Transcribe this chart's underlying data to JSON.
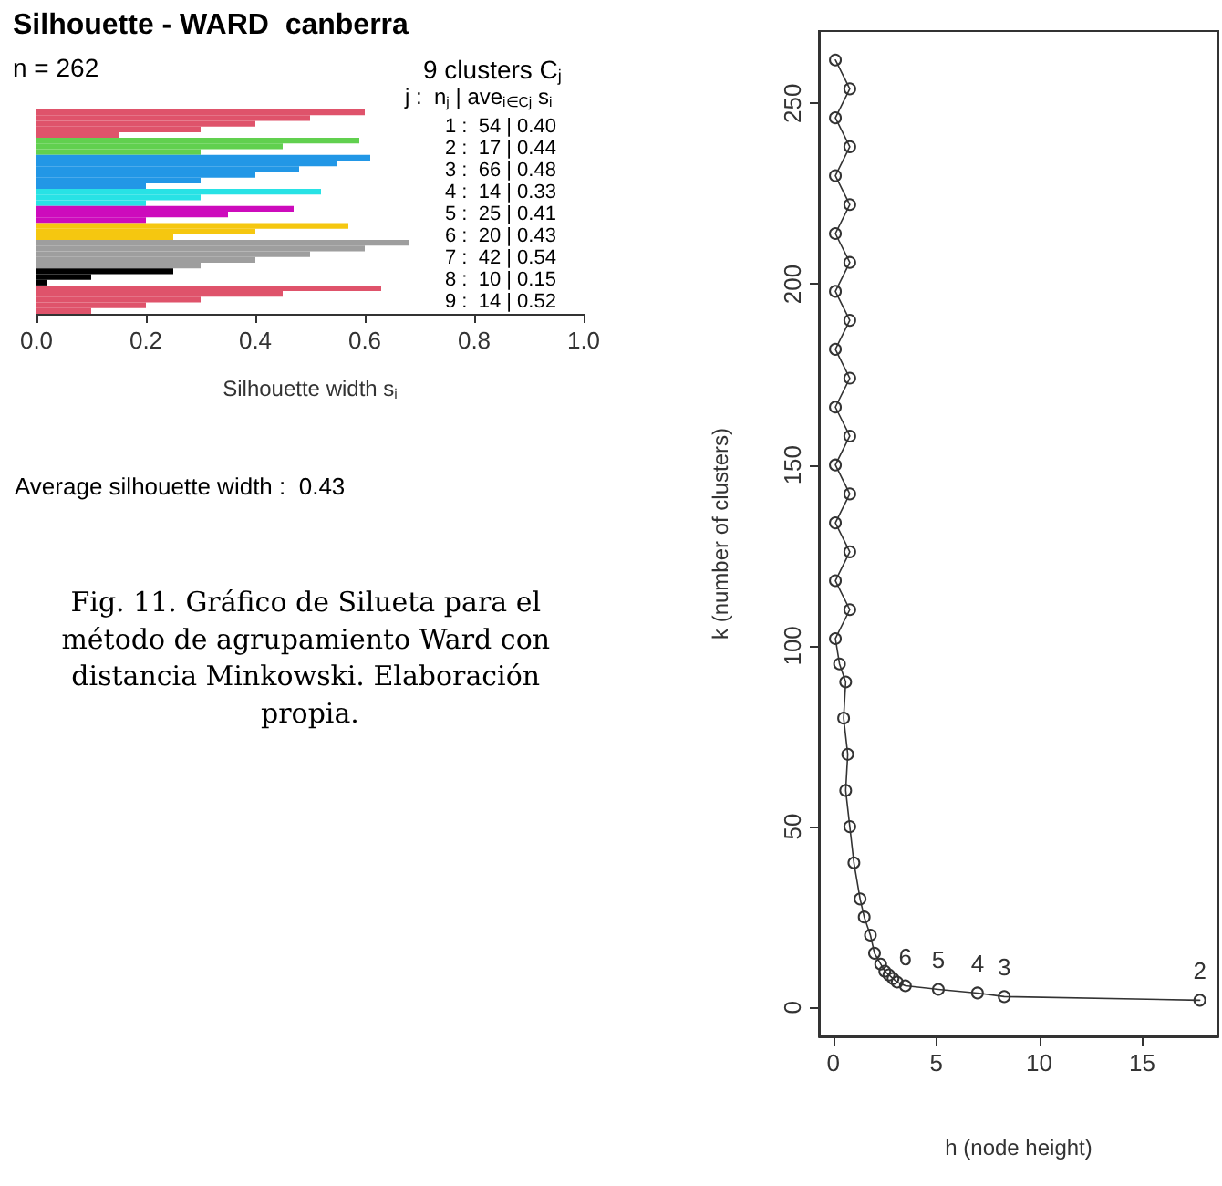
{
  "chart_data": [
    {
      "type": "bar",
      "orientation": "horizontal",
      "title": "Silhouette - WARD  canberra",
      "subtitle": "n = 262",
      "xlabel": "Silhouette width s$_{i}$",
      "categories": [
        null,
        null,
        null,
        null,
        null,
        null,
        null,
        null,
        null,
        null,
        null,
        null,
        null,
        null,
        null,
        null,
        null,
        null,
        null,
        null,
        null,
        null,
        null,
        null,
        null,
        null,
        null,
        null,
        null,
        null,
        null,
        null,
        null,
        null,
        null,
        null
      ],
      "values": [
        0.6,
        0.5,
        0.4,
        0.3,
        0.15,
        0.59,
        0.45,
        0.3,
        0.61,
        0.55,
        0.48,
        0.4,
        0.3,
        0.2,
        0.52,
        0.3,
        0.2,
        0.47,
        0.35,
        0.2,
        0.57,
        0.4,
        0.25,
        0.68,
        0.6,
        0.5,
        0.4,
        0.3,
        0.25,
        0.1,
        0.02,
        0.63,
        0.45,
        0.3,
        0.2,
        0.1
      ],
      "colors": [
        "#df536b",
        "#df536b",
        "#df536b",
        "#df536b",
        "#df536b",
        "#61d04f",
        "#61d04f",
        "#61d04f",
        "#2297e6",
        "#2297e6",
        "#2297e6",
        "#2297e6",
        "#2297e6",
        "#2297e6",
        "#28e2e5",
        "#28e2e5",
        "#28e2e5",
        "#cd0bbc",
        "#cd0bbc",
        "#cd0bbc",
        "#f5c710",
        "#f5c710",
        "#f5c710",
        "#9e9e9e",
        "#9e9e9e",
        "#9e9e9e",
        "#9e9e9e",
        "#9e9e9e",
        "#000000",
        "#000000",
        "#000000",
        "#df536b",
        "#df536b",
        "#df536b",
        "#df536b",
        "#df536b"
      ],
      "xlim": [
        0,
        1
      ],
      "xticks": [
        {
          "value": 0,
          "label": "0.0"
        },
        {
          "value": 0.2,
          "label": "0.2"
        },
        {
          "value": 0.4,
          "label": "0.4"
        },
        {
          "value": 0.6,
          "label": "0.6"
        },
        {
          "value": 0.8,
          "label": "0.8"
        },
        {
          "value": 1,
          "label": "1.0"
        }
      ],
      "tick_labels": "x",
      "grid": false,
      "annotations": [
        "9 clusters C$_{j}$",
        "j :  n$_{j}$ | ave$_{i∈Cj}$ s$_{i}$",
        "1 :  54 | 0.40",
        "2 :  17 | 0.44",
        "3 :  66 | 0.48",
        "4 :  14 | 0.33",
        "5 :  25 | 0.41",
        "6 :  20 | 0.43",
        "7 :  42 | 0.54",
        "8 :  10 | 0.15",
        "9 :  14 | 0.52",
        "Average silhouette width :  0.43",
        "Fig. 11. Gráfico de Silueta para el método de agrupamiento Ward con distancia Minkowski. Elaboración propia."
      ]
    },
    {
      "type": "line",
      "xlabel": "h (node height)",
      "ylabel": "k (number of clusters)",
      "color": "#333333",
      "marker": "circle",
      "grid": false,
      "value_labels": [
        null,
        null,
        null,
        null,
        null,
        null,
        null,
        null,
        null,
        null,
        null,
        null,
        null,
        null,
        null,
        null,
        null,
        null,
        null,
        null,
        null,
        null,
        null,
        null,
        null,
        null,
        null,
        null,
        null,
        null,
        null,
        null,
        null,
        null,
        null,
        null,
        null,
        "6",
        "5",
        "4",
        "3",
        "2"
      ],
      "x": [
        0.1,
        0.8,
        0.1,
        0.8,
        0.1,
        0.8,
        0.1,
        0.8,
        0.1,
        0.8,
        0.1,
        0.8,
        0.1,
        0.8,
        0.1,
        0.8,
        0.1,
        0.8,
        0.1,
        0.8,
        0.1,
        0.3,
        0.6,
        0.5,
        0.7,
        0.6,
        0.8,
        1.0,
        1.3,
        1.5,
        1.8,
        2.0,
        2.3,
        2.5,
        2.7,
        2.9,
        3.1,
        3.5,
        5.1,
        7.0,
        8.3,
        17.8
      ],
      "values": [
        262,
        254,
        246,
        238,
        230,
        222,
        214,
        206,
        198,
        190,
        182,
        174,
        166,
        158,
        150,
        142,
        134,
        126,
        118,
        110,
        102,
        95,
        90,
        80,
        70,
        60,
        50,
        40,
        30,
        25,
        20,
        15,
        12,
        10,
        9,
        8,
        7,
        6,
        5,
        4,
        3,
        2
      ],
      "xlim": [
        -0.7,
        18.7
      ],
      "ylim": [
        -8,
        270
      ],
      "xticks": [
        0,
        5,
        10,
        15
      ],
      "yticks": [
        0,
        50,
        100,
        150,
        200,
        250
      ]
    }
  ]
}
